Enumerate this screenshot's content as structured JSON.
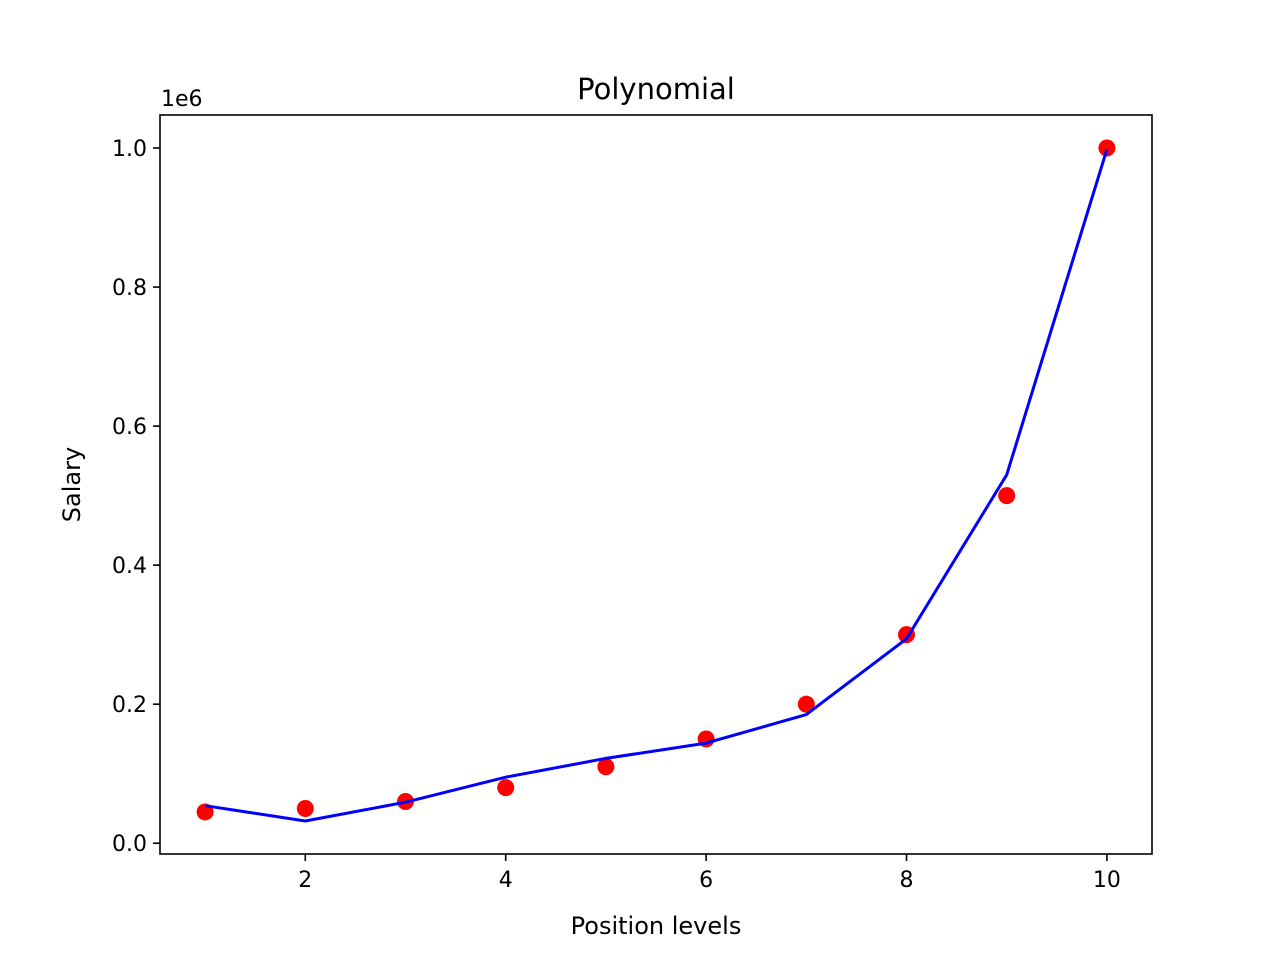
{
  "chart_data": {
    "type": "scatter",
    "title": "Polynomial",
    "xlabel": "Position levels",
    "ylabel": "Salary",
    "y_offset_label": "1e6",
    "xlim": [
      0.55,
      10.45
    ],
    "ylim": [
      -0.0155,
      1.0475
    ],
    "x_ticks": [
      2,
      4,
      6,
      8,
      10
    ],
    "x_tick_labels": [
      "2",
      "4",
      "6",
      "8",
      "10"
    ],
    "y_ticks": [
      0.0,
      0.2,
      0.4,
      0.6,
      0.8,
      1.0
    ],
    "y_tick_labels": [
      "0.0",
      "0.2",
      "0.4",
      "0.6",
      "0.8",
      "1.0"
    ],
    "grid": false,
    "series": [
      {
        "kind": "scatter",
        "color": "#ff0000",
        "x": [
          1,
          2,
          3,
          4,
          5,
          6,
          7,
          8,
          9,
          10
        ],
        "y": [
          0.045,
          0.05,
          0.06,
          0.08,
          0.11,
          0.15,
          0.2,
          0.3,
          0.5,
          1.0
        ]
      },
      {
        "kind": "line",
        "color": "#0000ff",
        "x": [
          1,
          2,
          3,
          4,
          5,
          6,
          7,
          8,
          9,
          10
        ],
        "y": [
          0.054,
          0.032,
          0.059,
          0.095,
          0.122,
          0.144,
          0.185,
          0.294,
          0.53,
          0.998
        ]
      }
    ]
  }
}
